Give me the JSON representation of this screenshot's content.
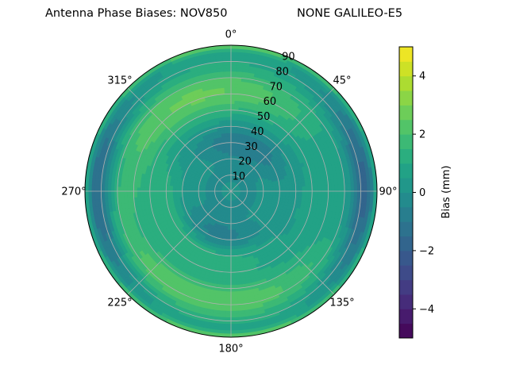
{
  "chart_data": {
    "type": "polar-contour",
    "title_left": "Antenna Phase Biases: NOV850",
    "title_right": "NONE GALILEO-E5",
    "azimuth_labels": [
      "0°",
      "45°",
      "90°",
      "135°",
      "180°",
      "225°",
      "270°",
      "315°"
    ],
    "radial_ticks": [
      10,
      20,
      30,
      40,
      50,
      60,
      70,
      80,
      90
    ],
    "radial_range": [
      0,
      90
    ],
    "grid": true,
    "colorbar": {
      "label": "Bias (mm)",
      "range": [
        -5,
        5
      ],
      "ticks": [
        -4,
        -2,
        0,
        2,
        4
      ],
      "levels": [
        -5,
        -4.5,
        -4,
        -3.5,
        -3,
        -2.5,
        -2,
        -1.5,
        -1,
        -0.5,
        0,
        0.5,
        1,
        1.5,
        2,
        2.5,
        3,
        3.5,
        4,
        4.5,
        5
      ],
      "colormap": "viridis"
    },
    "field_description": "Smooth bias field in mm; rings at elevation 10,20,...; values approx from -3.5 to +3.5"
  },
  "colors": {
    "viridis": [
      "#440154",
      "#482475",
      "#414487",
      "#355f8d",
      "#2a788e",
      "#21918c",
      "#22a884",
      "#44bf70",
      "#7ad151",
      "#bddf26",
      "#fde725"
    ]
  }
}
